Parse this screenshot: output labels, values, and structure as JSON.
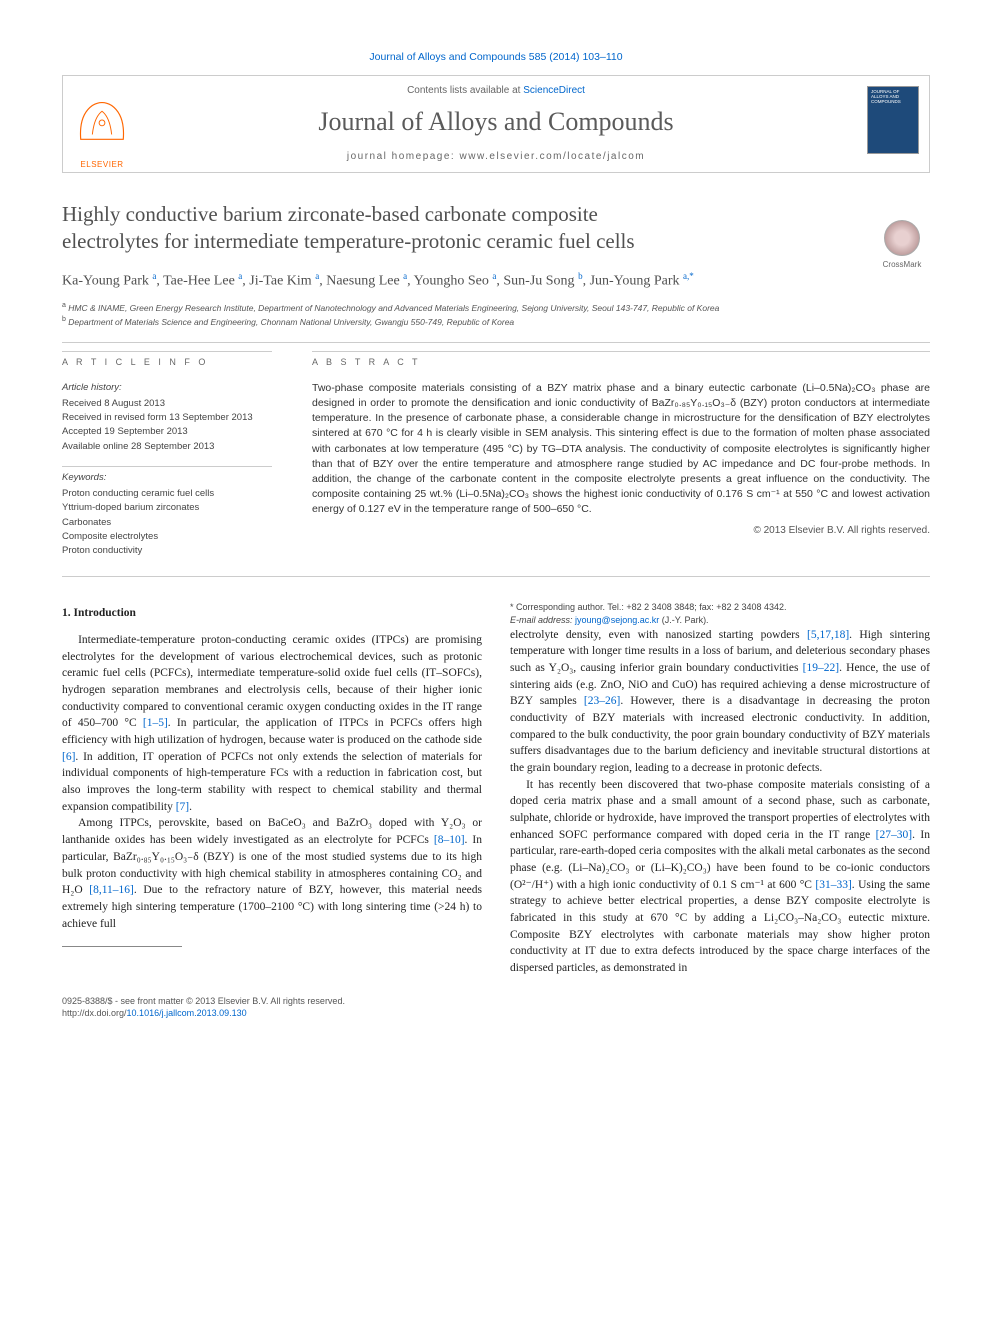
{
  "citation": "Journal of Alloys and Compounds 585 (2014) 103–110",
  "header": {
    "contents_prefix": "Contents lists available at ",
    "contents_link": "ScienceDirect",
    "journal_name": "Journal of Alloys and Compounds",
    "homepage_prefix": "journal homepage: ",
    "homepage_url": "www.elsevier.com/locate/jalcom",
    "publisher": "ELSEVIER",
    "cover_text": "JOURNAL OF ALLOYS AND COMPOUNDS"
  },
  "crossmark_label": "CrossMark",
  "title_line1": "Highly conductive barium zirconate-based carbonate composite",
  "title_line2": "electrolytes for intermediate temperature-protonic ceramic fuel cells",
  "authors_html": "Ka-Young Park <sup>a</sup>, Tae-Hee Lee <sup>a</sup>, Ji-Tae Kim <sup>a</sup>, Naesung Lee <sup>a</sup>, Youngho Seo <sup>a</sup>, Sun-Ju Song <sup>b</sup>, Jun-Young Park <sup>a,*</sup>",
  "affiliations": {
    "a": "HMC & INAME, Green Energy Research Institute, Department of Nanotechnology and Advanced Materials Engineering, Sejong University, Seoul 143-747, Republic of Korea",
    "b": "Department of Materials Science and Engineering, Chonnam National University, Gwangju 550-749, Republic of Korea"
  },
  "info": {
    "label": "A R T I C L E   I N F O",
    "history_heading": "Article history:",
    "history": [
      "Received 8 August 2013",
      "Received in revised form 13 September 2013",
      "Accepted 19 September 2013",
      "Available online 28 September 2013"
    ],
    "keywords_heading": "Keywords:",
    "keywords": [
      "Proton conducting ceramic fuel cells",
      "Yttrium-doped barium zirconates",
      "Carbonates",
      "Composite electrolytes",
      "Proton conductivity"
    ]
  },
  "abstract": {
    "label": "A B S T R A C T",
    "text": "Two-phase composite materials consisting of a BZY matrix phase and a binary eutectic carbonate (Li–0.5Na)₂CO₃ phase are designed in order to promote the densification and ionic conductivity of BaZr₀.₈₅Y₀.₁₅O₃₋δ (BZY) proton conductors at intermediate temperature. In the presence of carbonate phase, a considerable change in microstructure for the densification of BZY electrolytes sintered at 670 °C for 4 h is clearly visible in SEM analysis. This sintering effect is due to the formation of molten phase associated with carbonates at low temperature (495 °C) by TG–DTA analysis. The conductivity of composite electrolytes is significantly higher than that of BZY over the entire temperature and atmosphere range studied by AC impedance and DC four-probe methods. In addition, the change of the carbonate content in the composite electrolyte presents a great influence on the conductivity. The composite containing 25 wt.% (Li–0.5Na)₂CO₃ shows the highest ionic conductivity of 0.176 S cm⁻¹ at 550 °C and lowest activation energy of 0.127 eV in the temperature range of 500–650 °C.",
    "copyright": "© 2013 Elsevier B.V. All rights reserved."
  },
  "body": {
    "section_heading": "1. Introduction",
    "p1": "Intermediate-temperature proton-conducting ceramic oxides (ITPCs) are promising electrolytes for the development of various electrochemical devices, such as protonic ceramic fuel cells (PCFCs), intermediate temperature-solid oxide fuel cells (IT–SOFCs), hydrogen separation membranes and electrolysis cells, because of their higher ionic conductivity compared to conventional ceramic oxygen conducting oxides in the IT range of 450–700 °C [1–5]. In particular, the application of ITPCs in PCFCs offers high efficiency with high utilization of hydrogen, because water is produced on the cathode side [6]. In addition, IT operation of PCFCs not only extends the selection of materials for individual components of high-temperature FCs with a reduction in fabrication cost, but also improves the long-term stability with respect to chemical stability and thermal expansion compatibility [7].",
    "p2": "Among ITPCs, perovskite, based on BaCeO₃ and BaZrO₃ doped with Y₂O₃ or lanthanide oxides has been widely investigated as an electrolyte for PCFCs [8–10]. In particular, BaZr₀.₈₅Y₀.₁₅O₃₋δ (BZY) is one of the most studied systems due to its high bulk proton conductivity with high chemical stability in atmospheres containing CO₂ and H₂O [8,11–16]. Due to the refractory nature of BZY, however, this material needs extremely high sintering temperature (1700–2100 °C) with long sintering time (>24 h) to achieve full",
    "p3": "electrolyte density, even with nanosized starting powders [5,17,18]. High sintering temperature with longer time results in a loss of barium, and deleterious secondary phases such as Y₂O₃, causing inferior grain boundary conductivities [19–22]. Hence, the use of sintering aids (e.g. ZnO, NiO and CuO) has required achieving a dense microstructure of BZY samples [23–26]. However, there is a disadvantage in decreasing the proton conductivity of BZY materials with increased electronic conductivity. In addition, compared to the bulk conductivity, the poor grain boundary conductivity of BZY materials suffers disadvantages due to the barium deficiency and inevitable structural distortions at the grain boundary region, leading to a decrease in protonic defects.",
    "p4": "It has recently been discovered that two-phase composite materials consisting of a doped ceria matrix phase and a small amount of a second phase, such as carbonate, sulphate, chloride or hydroxide, have improved the transport properties of electrolytes with enhanced SOFC performance compared with doped ceria in the IT range [27–30]. In particular, rare-earth-doped ceria composites with the alkali metal carbonates as the second phase (e.g. (Li–Na)₂CO₃ or (Li–K)₂CO₃) have been found to be co-ionic conductors (O²⁻/H⁺) with a high ionic conductivity of 0.1 S cm⁻¹ at 600 °C [31–33]. Using the same strategy to achieve better electrical properties, a dense BZY composite electrolyte is fabricated in this study at 670 °C by adding a Li₂CO₃–Na₂CO₃ eutectic mixture. Composite BZY electrolytes with carbonate materials may show higher proton conductivity at IT due to extra defects introduced by the space charge interfaces of the dispersed particles, as demonstrated in"
  },
  "footnote": {
    "corr": "* Corresponding author. Tel.: +82 2 3408 3848; fax: +82 2 3408 4342.",
    "email_label": "E-mail address: ",
    "email": "jyoung@sejong.ac.kr",
    "email_suffix": " (J.-Y. Park)."
  },
  "footer": {
    "left_line1": "0925-8388/$ - see front matter © 2013 Elsevier B.V. All rights reserved.",
    "left_line2_prefix": "http://dx.doi.org/",
    "doi": "10.1016/j.jallcom.2013.09.130"
  },
  "colors": {
    "link": "#0066cc",
    "elsevier_orange": "#ff6600",
    "text_gray": "#505050",
    "border_gray": "#cccccc",
    "cover_blue": "#1e4a7a"
  }
}
